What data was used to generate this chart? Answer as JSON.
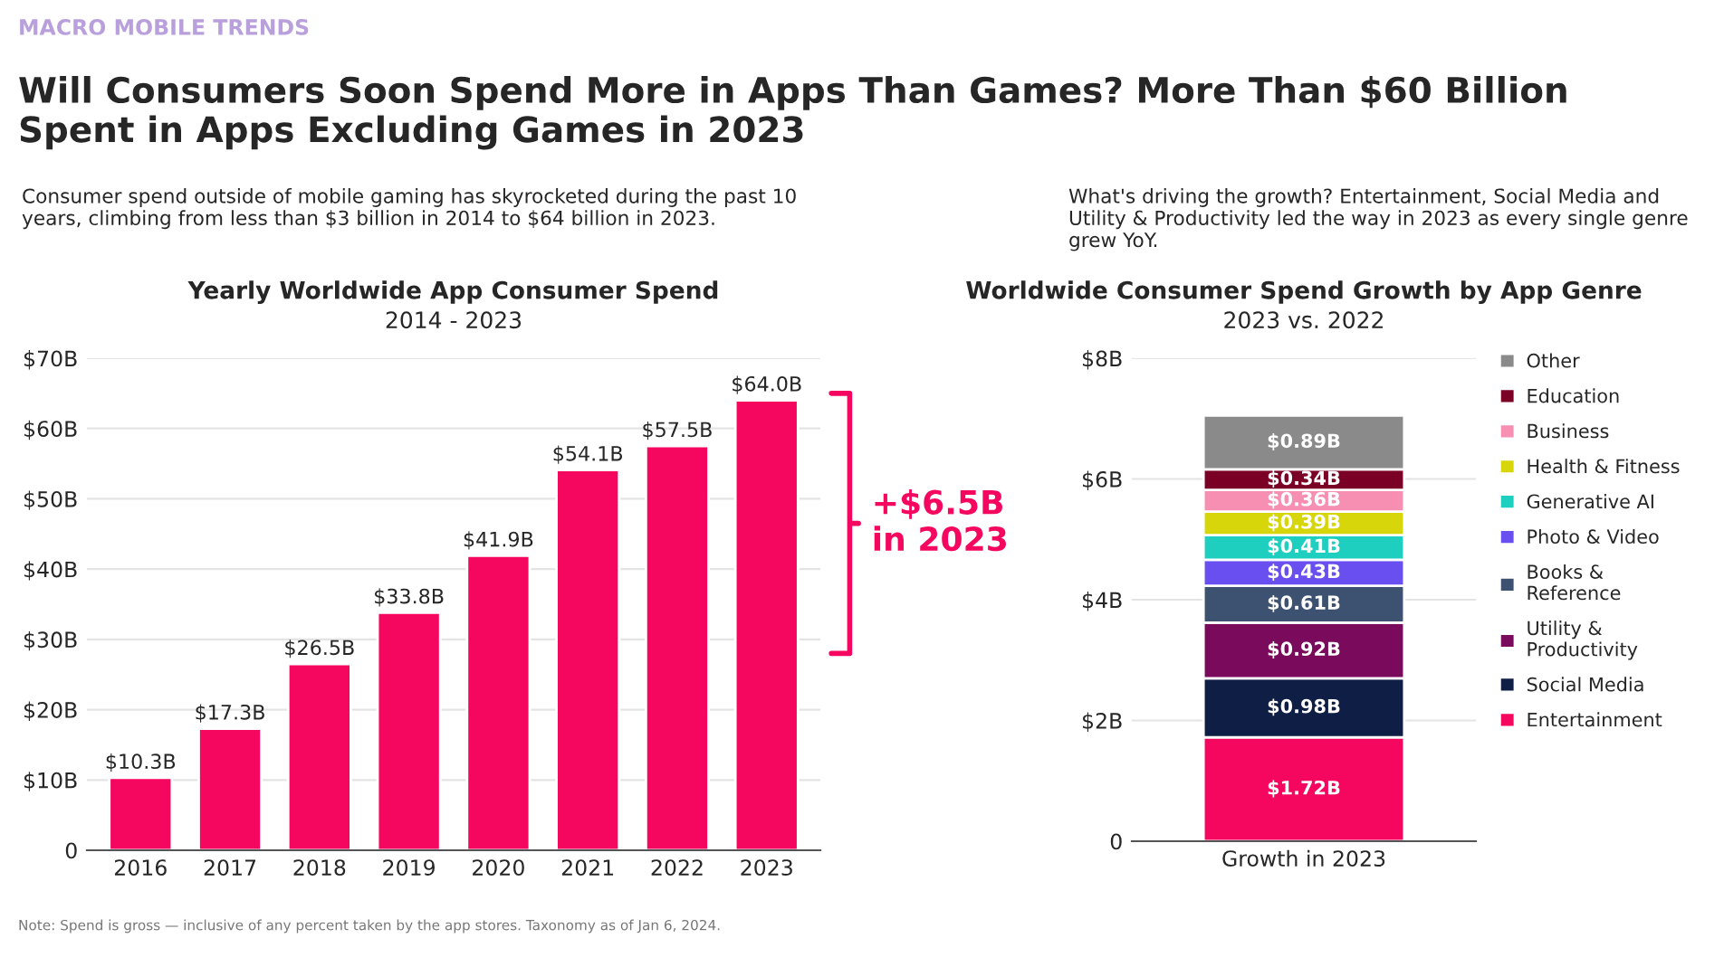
{
  "chart_data": [
    {
      "type": "bar",
      "title": "Yearly Worldwide App Consumer Spend",
      "subtitle": "2014 - 2023",
      "categories": [
        "2016",
        "2017",
        "2018",
        "2019",
        "2020",
        "2021",
        "2022",
        "2023"
      ],
      "values": [
        10.3,
        17.3,
        26.5,
        33.8,
        41.9,
        54.1,
        57.5,
        64.0
      ],
      "color": "#f5075f",
      "value_labels": [
        "$10.3B",
        "$17.3B",
        "$26.5B",
        "$33.8B",
        "$41.9B",
        "$54.1B",
        "$57.5B",
        "$64.0B"
      ],
      "ylim": [
        0,
        70
      ],
      "yticks": [
        {
          "value": 0,
          "label": "0"
        },
        {
          "value": 10,
          "label": "$10B"
        },
        {
          "value": 20,
          "label": "$20B"
        },
        {
          "value": 30,
          "label": "$30B"
        },
        {
          "value": 40,
          "label": "$40B"
        },
        {
          "value": 50,
          "label": "$50B"
        },
        {
          "value": 60,
          "label": "$60B"
        },
        {
          "value": 70,
          "label": "$70B"
        }
      ],
      "grid": "y",
      "annotations": [
        "MACRO MOBILE TRENDS",
        "Will Consumers Soon Spend More in Apps Than Games? More Than $60 Billion Spent in Apps Excluding Games in 2023",
        "Consumer spend outside of mobile gaming has skyrocketed during the past 10 years, climbing from less than $3 billion in 2014 to $64 billion in 2023.",
        "Note: Spend is gross — inclusive of any percent taken by the app stores. Taxonomy as of Jan 6, 2024.",
        "+$6.5B\nin 2023"
      ]
    },
    {
      "type": "bar",
      "stacked": true,
      "title": "Worldwide Consumer Spend Growth by App Genre",
      "subtitle": "2023 vs. 2022",
      "categories": [
        "Growth in 2023"
      ],
      "series": [
        {
          "name": "Entertainment",
          "color": "#f5065f",
          "values": [
            1.72
          ],
          "value_labels": [
            "$1.72B"
          ]
        },
        {
          "name": "Social Media",
          "color": "#0e1e45",
          "values": [
            0.98
          ],
          "value_labels": [
            "$0.98B"
          ]
        },
        {
          "name": "Utility & Productivity",
          "color": "#7a0a5c",
          "values": [
            0.92
          ],
          "value_labels": [
            "$0.92B"
          ]
        },
        {
          "name": "Books & Reference",
          "color": "#3d5270",
          "values": [
            0.61
          ],
          "value_labels": [
            "$0.61B"
          ]
        },
        {
          "name": "Photo & Video",
          "color": "#6a4ff0",
          "values": [
            0.43
          ],
          "value_labels": [
            "$0.43B"
          ]
        },
        {
          "name": "Generative AI",
          "color": "#1ecfc0",
          "values": [
            0.41
          ],
          "value_labels": [
            "$0.41B"
          ]
        },
        {
          "name": "Health & Fitness",
          "color": "#d6d60a",
          "values": [
            0.39
          ],
          "value_labels": [
            "$0.39B"
          ]
        },
        {
          "name": "Business",
          "color": "#f78fb3",
          "values": [
            0.36
          ],
          "value_labels": [
            "$0.36B"
          ]
        },
        {
          "name": "Education",
          "color": "#7a0026",
          "values": [
            0.34
          ],
          "value_labels": [
            "$0.34B"
          ]
        },
        {
          "name": "Other",
          "color": "#8a8a8a",
          "values": [
            0.89
          ],
          "value_labels": [
            "$0.89B"
          ]
        }
      ],
      "ylim": [
        0,
        8
      ],
      "yticks": [
        {
          "value": 0,
          "label": "0"
        },
        {
          "value": 2,
          "label": "$2B"
        },
        {
          "value": 4,
          "label": "$4B"
        },
        {
          "value": 6,
          "label": "$6B"
        },
        {
          "value": 8,
          "label": "$8B"
        }
      ],
      "grid": "y",
      "legend": "right",
      "annotations": [
        "What's driving the growth? Entertainment, Social Media and Utility & Productivity led the way in 2023 as every single genre grew YoY."
      ]
    }
  ]
}
